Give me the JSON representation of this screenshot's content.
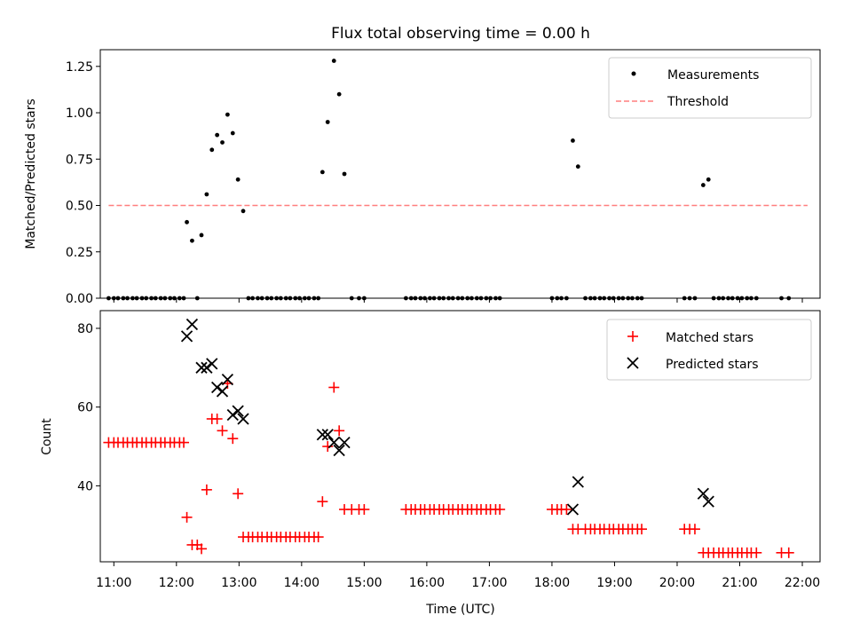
{
  "figure": {
    "title": "Flux total observing time = 0.00 h",
    "xlabel": "Time (UTC)"
  },
  "chart_data": [
    {
      "type": "scatter",
      "ylabel": "Matched/Predicted stars",
      "xlim": [
        "10:47",
        "22:17"
      ],
      "ylim": [
        0.0,
        1.34
      ],
      "yticks": [
        0.0,
        0.25,
        0.5,
        0.75,
        1.0,
        1.25
      ],
      "ytick_labels": [
        "0.00",
        "0.25",
        "0.50",
        "0.75",
        "1.00",
        "1.25"
      ],
      "legend": {
        "placement": "top-right",
        "entries": [
          "Measurements",
          "Threshold"
        ]
      },
      "series": [
        {
          "name": "Measurements",
          "marker": "dot",
          "color": "#000000",
          "points": [
            [
              "10:55",
              0
            ],
            [
              "11:00",
              0
            ],
            [
              "11:04",
              0
            ],
            [
              "11:09",
              0
            ],
            [
              "11:13",
              0
            ],
            [
              "11:18",
              0
            ],
            [
              "11:22",
              0
            ],
            [
              "11:27",
              0
            ],
            [
              "11:31",
              0
            ],
            [
              "11:36",
              0
            ],
            [
              "11:40",
              0
            ],
            [
              "11:45",
              0
            ],
            [
              "11:49",
              0
            ],
            [
              "11:54",
              0
            ],
            [
              "11:58",
              0
            ],
            [
              "12:03",
              0
            ],
            [
              "12:07",
              0
            ],
            [
              "12:10",
              0.41
            ],
            [
              "12:15",
              0.31
            ],
            [
              "12:20",
              0
            ],
            [
              "12:24",
              0.34
            ],
            [
              "12:29",
              0.56
            ],
            [
              "12:34",
              0.8
            ],
            [
              "12:39",
              0.88
            ],
            [
              "12:44",
              0.84
            ],
            [
              "12:49",
              0.99
            ],
            [
              "12:54",
              0.89
            ],
            [
              "12:59",
              0.64
            ],
            [
              "13:04",
              0.47
            ],
            [
              "13:09",
              0
            ],
            [
              "13:13",
              0
            ],
            [
              "13:18",
              0
            ],
            [
              "13:22",
              0
            ],
            [
              "13:27",
              0
            ],
            [
              "13:31",
              0
            ],
            [
              "13:36",
              0
            ],
            [
              "13:40",
              0
            ],
            [
              "13:45",
              0
            ],
            [
              "13:49",
              0
            ],
            [
              "13:54",
              0
            ],
            [
              "13:58",
              0
            ],
            [
              "14:03",
              0
            ],
            [
              "14:07",
              0
            ],
            [
              "14:12",
              0
            ],
            [
              "14:16",
              0
            ],
            [
              "14:20",
              0.68
            ],
            [
              "14:25",
              0.95
            ],
            [
              "14:31",
              1.28
            ],
            [
              "14:36",
              1.1
            ],
            [
              "14:41",
              0.67
            ],
            [
              "14:48",
              0
            ],
            [
              "14:55",
              0
            ],
            [
              "15:00",
              0
            ],
            [
              "15:40",
              0
            ],
            [
              "15:45",
              0
            ],
            [
              "15:49",
              0
            ],
            [
              "15:54",
              0
            ],
            [
              "15:58",
              0
            ],
            [
              "16:03",
              0
            ],
            [
              "16:07",
              0
            ],
            [
              "16:12",
              0
            ],
            [
              "16:16",
              0
            ],
            [
              "16:21",
              0
            ],
            [
              "16:25",
              0
            ],
            [
              "16:30",
              0
            ],
            [
              "16:34",
              0
            ],
            [
              "16:39",
              0
            ],
            [
              "16:43",
              0
            ],
            [
              "16:48",
              0
            ],
            [
              "16:52",
              0
            ],
            [
              "16:57",
              0
            ],
            [
              "17:01",
              0
            ],
            [
              "17:06",
              0
            ],
            [
              "17:10",
              0
            ],
            [
              "18:00",
              0
            ],
            [
              "18:05",
              0
            ],
            [
              "18:09",
              0
            ],
            [
              "18:14",
              0
            ],
            [
              "18:20",
              0.85
            ],
            [
              "18:25",
              0.71
            ],
            [
              "18:32",
              0
            ],
            [
              "18:37",
              0
            ],
            [
              "18:41",
              0
            ],
            [
              "18:46",
              0
            ],
            [
              "18:50",
              0
            ],
            [
              "18:55",
              0
            ],
            [
              "18:59",
              0
            ],
            [
              "19:04",
              0
            ],
            [
              "19:08",
              0
            ],
            [
              "19:13",
              0
            ],
            [
              "19:17",
              0
            ],
            [
              "19:22",
              0
            ],
            [
              "19:26",
              0
            ],
            [
              "20:07",
              0
            ],
            [
              "20:12",
              0
            ],
            [
              "20:17",
              0
            ],
            [
              "20:25",
              0.61
            ],
            [
              "20:30",
              0.64
            ],
            [
              "20:35",
              0
            ],
            [
              "20:40",
              0
            ],
            [
              "20:44",
              0
            ],
            [
              "20:49",
              0
            ],
            [
              "20:53",
              0
            ],
            [
              "20:58",
              0
            ],
            [
              "21:02",
              0
            ],
            [
              "21:07",
              0
            ],
            [
              "21:11",
              0
            ],
            [
              "21:16",
              0
            ],
            [
              "21:40",
              0
            ],
            [
              "21:47",
              0
            ]
          ]
        },
        {
          "name": "Threshold",
          "style": "dashed",
          "color": "#ff7f7f",
          "points": [
            [
              "10:55",
              0.5
            ],
            [
              "22:05",
              0.5
            ]
          ]
        }
      ]
    },
    {
      "type": "scatter",
      "ylabel": "Count",
      "xlim": [
        "10:47",
        "22:17"
      ],
      "ylim": [
        20.7,
        84.5
      ],
      "yticks": [
        40,
        60,
        80
      ],
      "ytick_labels": [
        "40",
        "60",
        "80"
      ],
      "xticks": [
        "11:00",
        "12:00",
        "13:00",
        "14:00",
        "15:00",
        "16:00",
        "17:00",
        "18:00",
        "19:00",
        "20:00",
        "21:00",
        "22:00"
      ],
      "legend": {
        "placement": "top-right",
        "entries": [
          "Matched stars",
          "Predicted stars"
        ]
      },
      "series": [
        {
          "name": "Matched stars",
          "marker": "plus",
          "color": "#ff0000",
          "points": [
            [
              "10:55",
              51
            ],
            [
              "11:00",
              51
            ],
            [
              "11:04",
              51
            ],
            [
              "11:09",
              51
            ],
            [
              "11:13",
              51
            ],
            [
              "11:18",
              51
            ],
            [
              "11:22",
              51
            ],
            [
              "11:27",
              51
            ],
            [
              "11:31",
              51
            ],
            [
              "11:36",
              51
            ],
            [
              "11:40",
              51
            ],
            [
              "11:45",
              51
            ],
            [
              "11:49",
              51
            ],
            [
              "11:54",
              51
            ],
            [
              "11:58",
              51
            ],
            [
              "12:03",
              51
            ],
            [
              "12:07",
              51
            ],
            [
              "12:10",
              32
            ],
            [
              "12:15",
              25
            ],
            [
              "12:20",
              25
            ],
            [
              "12:24",
              24
            ],
            [
              "12:29",
              39
            ],
            [
              "12:34",
              57
            ],
            [
              "12:39",
              57
            ],
            [
              "12:44",
              54
            ],
            [
              "12:49",
              66
            ],
            [
              "12:54",
              52
            ],
            [
              "12:59",
              38
            ],
            [
              "13:04",
              27
            ],
            [
              "13:09",
              27
            ],
            [
              "13:13",
              27
            ],
            [
              "13:18",
              27
            ],
            [
              "13:22",
              27
            ],
            [
              "13:27",
              27
            ],
            [
              "13:31",
              27
            ],
            [
              "13:36",
              27
            ],
            [
              "13:40",
              27
            ],
            [
              "13:45",
              27
            ],
            [
              "13:49",
              27
            ],
            [
              "13:54",
              27
            ],
            [
              "13:58",
              27
            ],
            [
              "14:03",
              27
            ],
            [
              "14:07",
              27
            ],
            [
              "14:12",
              27
            ],
            [
              "14:16",
              27
            ],
            [
              "14:20",
              36
            ],
            [
              "14:25",
              50
            ],
            [
              "14:31",
              65
            ],
            [
              "14:36",
              54
            ],
            [
              "14:41",
              34
            ],
            [
              "14:48",
              34
            ],
            [
              "14:55",
              34
            ],
            [
              "15:00",
              34
            ],
            [
              "15:40",
              34
            ],
            [
              "15:45",
              34
            ],
            [
              "15:49",
              34
            ],
            [
              "15:54",
              34
            ],
            [
              "15:58",
              34
            ],
            [
              "16:03",
              34
            ],
            [
              "16:07",
              34
            ],
            [
              "16:12",
              34
            ],
            [
              "16:16",
              34
            ],
            [
              "16:21",
              34
            ],
            [
              "16:25",
              34
            ],
            [
              "16:30",
              34
            ],
            [
              "16:34",
              34
            ],
            [
              "16:39",
              34
            ],
            [
              "16:43",
              34
            ],
            [
              "16:48",
              34
            ],
            [
              "16:52",
              34
            ],
            [
              "16:57",
              34
            ],
            [
              "17:01",
              34
            ],
            [
              "17:06",
              34
            ],
            [
              "17:10",
              34
            ],
            [
              "18:00",
              34
            ],
            [
              "18:05",
              34
            ],
            [
              "18:09",
              34
            ],
            [
              "18:14",
              34
            ],
            [
              "18:20",
              29
            ],
            [
              "18:25",
              29
            ],
            [
              "18:32",
              29
            ],
            [
              "18:37",
              29
            ],
            [
              "18:41",
              29
            ],
            [
              "18:46",
              29
            ],
            [
              "18:50",
              29
            ],
            [
              "18:55",
              29
            ],
            [
              "18:59",
              29
            ],
            [
              "19:04",
              29
            ],
            [
              "19:08",
              29
            ],
            [
              "19:13",
              29
            ],
            [
              "19:17",
              29
            ],
            [
              "19:22",
              29
            ],
            [
              "19:26",
              29
            ],
            [
              "20:07",
              29
            ],
            [
              "20:12",
              29
            ],
            [
              "20:17",
              29
            ],
            [
              "20:25",
              23
            ],
            [
              "20:30",
              23
            ],
            [
              "20:35",
              23
            ],
            [
              "20:40",
              23
            ],
            [
              "20:44",
              23
            ],
            [
              "20:49",
              23
            ],
            [
              "20:53",
              23
            ],
            [
              "20:58",
              23
            ],
            [
              "21:02",
              23
            ],
            [
              "21:07",
              23
            ],
            [
              "21:11",
              23
            ],
            [
              "21:16",
              23
            ],
            [
              "21:40",
              23
            ],
            [
              "21:47",
              23
            ]
          ]
        },
        {
          "name": "Predicted stars",
          "marker": "x",
          "color": "#000000",
          "points": [
            [
              "12:10",
              78
            ],
            [
              "12:15",
              81
            ],
            [
              "12:24",
              70
            ],
            [
              "12:29",
              70
            ],
            [
              "12:34",
              71
            ],
            [
              "12:39",
              65
            ],
            [
              "12:44",
              64
            ],
            [
              "12:49",
              67
            ],
            [
              "12:54",
              58
            ],
            [
              "12:59",
              59
            ],
            [
              "13:04",
              57
            ],
            [
              "14:20",
              53
            ],
            [
              "14:25",
              53
            ],
            [
              "14:31",
              51
            ],
            [
              "14:36",
              49
            ],
            [
              "14:41",
              51
            ],
            [
              "18:20",
              34
            ],
            [
              "18:25",
              41
            ],
            [
              "20:25",
              38
            ],
            [
              "20:30",
              36
            ]
          ]
        }
      ]
    }
  ]
}
